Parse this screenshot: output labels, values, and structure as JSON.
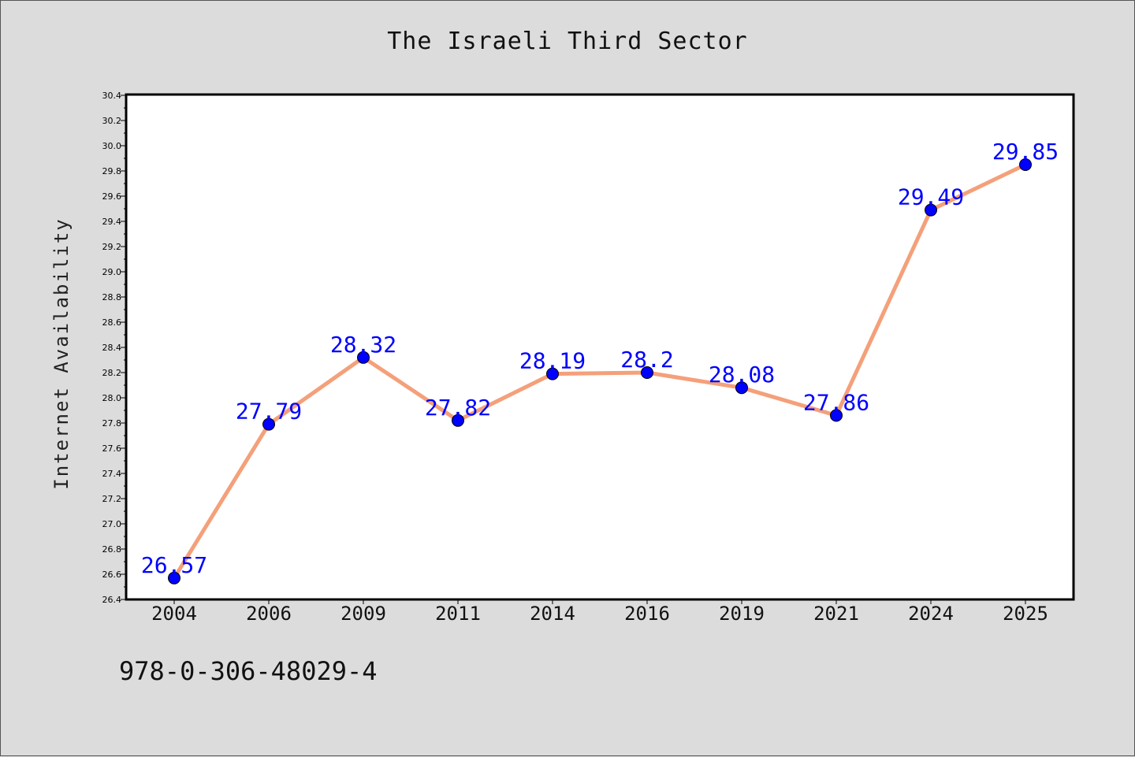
{
  "chart_data": {
    "type": "line",
    "title": "The Israeli Third Sector",
    "xlabel": "",
    "ylabel": "Internet Availability",
    "categories": [
      "2004",
      "2006",
      "2009",
      "2011",
      "2014",
      "2016",
      "2019",
      "2021",
      "2024",
      "2025"
    ],
    "series": [
      {
        "values": [
          26.57,
          27.79,
          28.32,
          27.82,
          28.19,
          28.2,
          28.08,
          27.86,
          29.49,
          29.85
        ],
        "data_labels": [
          "26.57",
          "27.79",
          "28.32",
          "27.82",
          "28.19",
          "28.2",
          "28.08",
          "27.86",
          "29.49",
          "29.85"
        ],
        "line_color": "#f4a07a",
        "marker_color": "#0000ff"
      }
    ],
    "ylim": [
      26.4,
      30.4
    ],
    "y_ticks": [
      "26.4",
      "26.6",
      "26.8",
      "27.0",
      "27.2",
      "27.4",
      "27.6",
      "27.8",
      "28.0",
      "28.2",
      "28.4",
      "28.6",
      "28.8",
      "29.0",
      "29.2",
      "29.4",
      "29.6",
      "29.8",
      "30.0",
      "30.2",
      "30.4"
    ],
    "grid": false,
    "legend": "none",
    "label_color": "#0000ff",
    "background_color": "#dcdcdc",
    "plot_background": "#ffffff"
  },
  "footer": {
    "code": "978-0-306-48029-4"
  }
}
